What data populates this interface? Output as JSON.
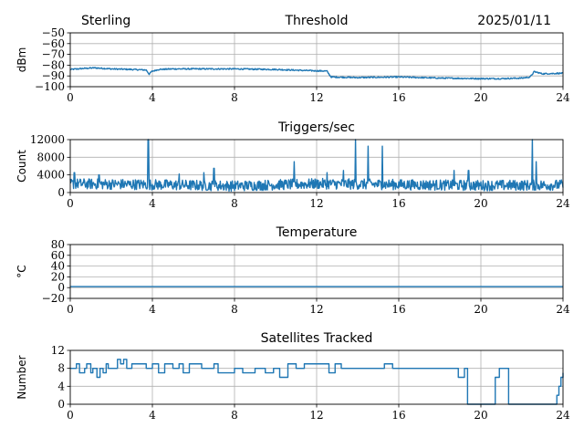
{
  "header": {
    "left": "Sterling",
    "right": "2025/01/11"
  },
  "chart_data": [
    {
      "type": "line",
      "title": "Threshold",
      "ylabel": "dBm",
      "xlim": [
        0,
        24
      ],
      "xticks": [
        0,
        4,
        8,
        12,
        16,
        20,
        24
      ],
      "xtick_labels": [
        "0",
        "4",
        "8",
        "12",
        "16",
        "20",
        "24"
      ],
      "ylim": [
        -100,
        -50
      ],
      "yticks": [
        -100,
        -90,
        -80,
        -70,
        -60,
        -50
      ],
      "ytick_labels": [
        "−100",
        "−90",
        "−80",
        "−70",
        "−60",
        "−50"
      ],
      "grid": true,
      "color": "#1f77b4",
      "noise": 0.6,
      "series": [
        {
          "x": [
            0,
            0.7,
            1.2,
            2,
            3,
            3.7,
            3.85,
            3.95,
            4.3,
            5,
            6,
            8,
            10,
            11.5,
            12.5,
            12.7,
            14,
            16,
            18,
            20,
            21,
            22,
            22.4,
            22.6,
            23,
            24
          ],
          "y": [
            -84,
            -83,
            -82.5,
            -83.5,
            -84,
            -84.5,
            -88.5,
            -86,
            -84,
            -83.5,
            -83.5,
            -83.5,
            -84,
            -85,
            -85.5,
            -91,
            -91.5,
            -91,
            -92,
            -92.5,
            -92.5,
            -92,
            -91,
            -86,
            -88,
            -87.5
          ]
        }
      ]
    },
    {
      "type": "line",
      "title": "Triggers/sec",
      "ylabel": "Count",
      "xlim": [
        0,
        24
      ],
      "xticks": [
        0,
        4,
        8,
        12,
        16,
        20,
        24
      ],
      "xtick_labels": [
        "0",
        "4",
        "8",
        "12",
        "16",
        "20",
        "24"
      ],
      "ylim": [
        0,
        12000
      ],
      "yticks": [
        0,
        4000,
        8000,
        12000
      ],
      "ytick_labels": [
        "0",
        "4000",
        "8000",
        "12000"
      ],
      "grid": true,
      "color": "#1f77b4",
      "noise": 1200,
      "spikes": [
        {
          "x": 0.2,
          "y": 4500
        },
        {
          "x": 1.4,
          "y": 4000
        },
        {
          "x": 3.8,
          "y": 12000
        },
        {
          "x": 5.3,
          "y": 4200
        },
        {
          "x": 6.5,
          "y": 4500
        },
        {
          "x": 7.0,
          "y": 5500
        },
        {
          "x": 10.9,
          "y": 7000
        },
        {
          "x": 12.5,
          "y": 4500
        },
        {
          "x": 13.3,
          "y": 5000
        },
        {
          "x": 13.9,
          "y": 12000
        },
        {
          "x": 14.5,
          "y": 10500
        },
        {
          "x": 15.2,
          "y": 10500
        },
        {
          "x": 18.7,
          "y": 5000
        },
        {
          "x": 19.4,
          "y": 5000
        },
        {
          "x": 22.5,
          "y": 12000
        },
        {
          "x": 22.7,
          "y": 7000
        }
      ],
      "series": [
        {
          "x": [
            0,
            4,
            8,
            12,
            16,
            20,
            24
          ],
          "y": [
            2000,
            1800,
            1500,
            2000,
            1800,
            1600,
            1700
          ]
        }
      ]
    },
    {
      "type": "line",
      "title": "Temperature",
      "ylabel": "°C",
      "xlim": [
        0,
        24
      ],
      "xticks": [
        0,
        4,
        8,
        12,
        16,
        20,
        24
      ],
      "xtick_labels": [
        "0",
        "4",
        "8",
        "12",
        "16",
        "20",
        "24"
      ],
      "ylim": [
        -20,
        80
      ],
      "yticks": [
        -20,
        0,
        20,
        40,
        60,
        80
      ],
      "ytick_labels": [
        "−20",
        "0",
        "20",
        "40",
        "60",
        "80"
      ],
      "grid": true,
      "color": "#1f77b4",
      "noise": 0,
      "series": [
        {
          "x": [
            0,
            24
          ],
          "y": [
            2,
            2
          ]
        }
      ]
    },
    {
      "type": "line",
      "title": "Satellites Tracked",
      "ylabel": "Number",
      "xlim": [
        0,
        24
      ],
      "xticks": [
        0,
        4,
        8,
        12,
        16,
        20,
        24
      ],
      "xtick_labels": [
        "0",
        "4",
        "8",
        "12",
        "16",
        "20",
        "24"
      ],
      "ylim": [
        0,
        12
      ],
      "yticks": [
        0,
        4,
        8,
        12
      ],
      "ytick_labels": [
        "0",
        "4",
        "8",
        "12"
      ],
      "grid": true,
      "color": "#1f77b4",
      "noise": 0,
      "step": true,
      "series": [
        {
          "x": [
            0,
            0.3,
            0.45,
            0.7,
            0.8,
            1.0,
            1.1,
            1.3,
            1.45,
            1.6,
            1.75,
            1.85,
            2.3,
            2.45,
            2.6,
            2.75,
            3.0,
            3.3,
            3.7,
            4.0,
            4.3,
            4.6,
            5.0,
            5.3,
            5.5,
            5.8,
            6.1,
            6.4,
            7.0,
            7.2,
            7.5,
            8.0,
            8.4,
            9.0,
            9.5,
            9.9,
            10.2,
            10.6,
            11.0,
            11.4,
            11.8,
            12.2,
            12.6,
            12.9,
            13.2,
            13.5,
            14.0,
            14.4,
            14.8,
            15.3,
            15.7,
            16.0,
            16.3,
            16.6,
            17.0,
            17.5,
            18.0,
            18.3,
            18.6,
            18.9,
            19.2,
            19.35,
            20.0,
            20.5,
            20.7,
            20.9,
            21.2,
            21.35,
            22.0,
            22.5,
            23.0,
            23.6,
            23.7,
            23.8,
            23.9,
            24.0
          ],
          "y": [
            8,
            9,
            7,
            8,
            9,
            7,
            8,
            6,
            8,
            7,
            9,
            8,
            10,
            9,
            10,
            8,
            9,
            9,
            8,
            9,
            7,
            9,
            8,
            9,
            7,
            9,
            9,
            8,
            9,
            7,
            7,
            8,
            7,
            8,
            7,
            8,
            6,
            9,
            8,
            9,
            9,
            9,
            7,
            9,
            8,
            8,
            8,
            8,
            8,
            9,
            8,
            8,
            8,
            8,
            8,
            8,
            8,
            8,
            8,
            6,
            8,
            0,
            0,
            0,
            6,
            8,
            8,
            0,
            0,
            0,
            0,
            0,
            2,
            4,
            6,
            7
          ]
        }
      ]
    }
  ]
}
